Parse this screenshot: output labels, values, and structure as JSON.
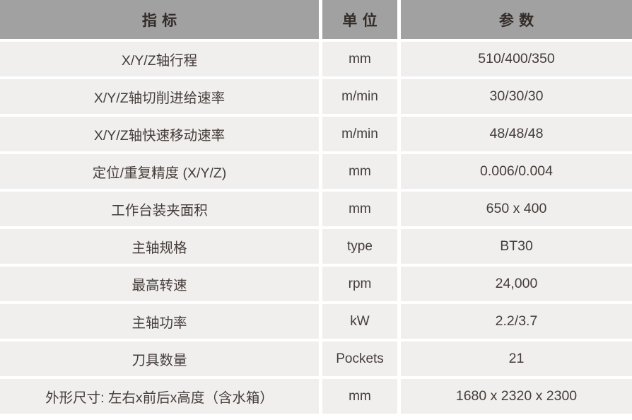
{
  "table": {
    "title": "machine-spec-table",
    "headers": {
      "indicator": "指标",
      "unit": "单位",
      "parameter": "参数"
    },
    "rows": [
      {
        "indicator": "X/Y/Z轴行程",
        "unit": "mm",
        "value": "510/400/350"
      },
      {
        "indicator": "X/Y/Z轴切削进给速率",
        "unit": "m/min",
        "value": "30/30/30"
      },
      {
        "indicator": "X/Y/Z轴快速移动速率",
        "unit": "m/min",
        "value": "48/48/48"
      },
      {
        "indicator": "定位/重复精度 (X/Y/Z)",
        "unit": "mm",
        "value": "0.006/0.004"
      },
      {
        "indicator": "工作台装夹面积",
        "unit": "mm",
        "value": "650 x 400"
      },
      {
        "indicator": "主轴规格",
        "unit": "type",
        "value": "BT30"
      },
      {
        "indicator": "最高转速",
        "unit": "rpm",
        "value": "24,000"
      },
      {
        "indicator": "主轴功率",
        "unit": "kW",
        "value": "2.2/3.7"
      },
      {
        "indicator": "刀具数量",
        "unit": "Pockets",
        "value": "21"
      },
      {
        "indicator": "外形尺寸: 左右x前后x高度（含水箱）",
        "unit": "mm",
        "value": "1680 x 2320 x 2300"
      }
    ],
    "colors": {
      "header_bg": "#a1a1a1",
      "row_bg": "#f0efee",
      "header_text": "#332c29",
      "body_text": "#453d3a",
      "divider": "#ffffff"
    }
  }
}
